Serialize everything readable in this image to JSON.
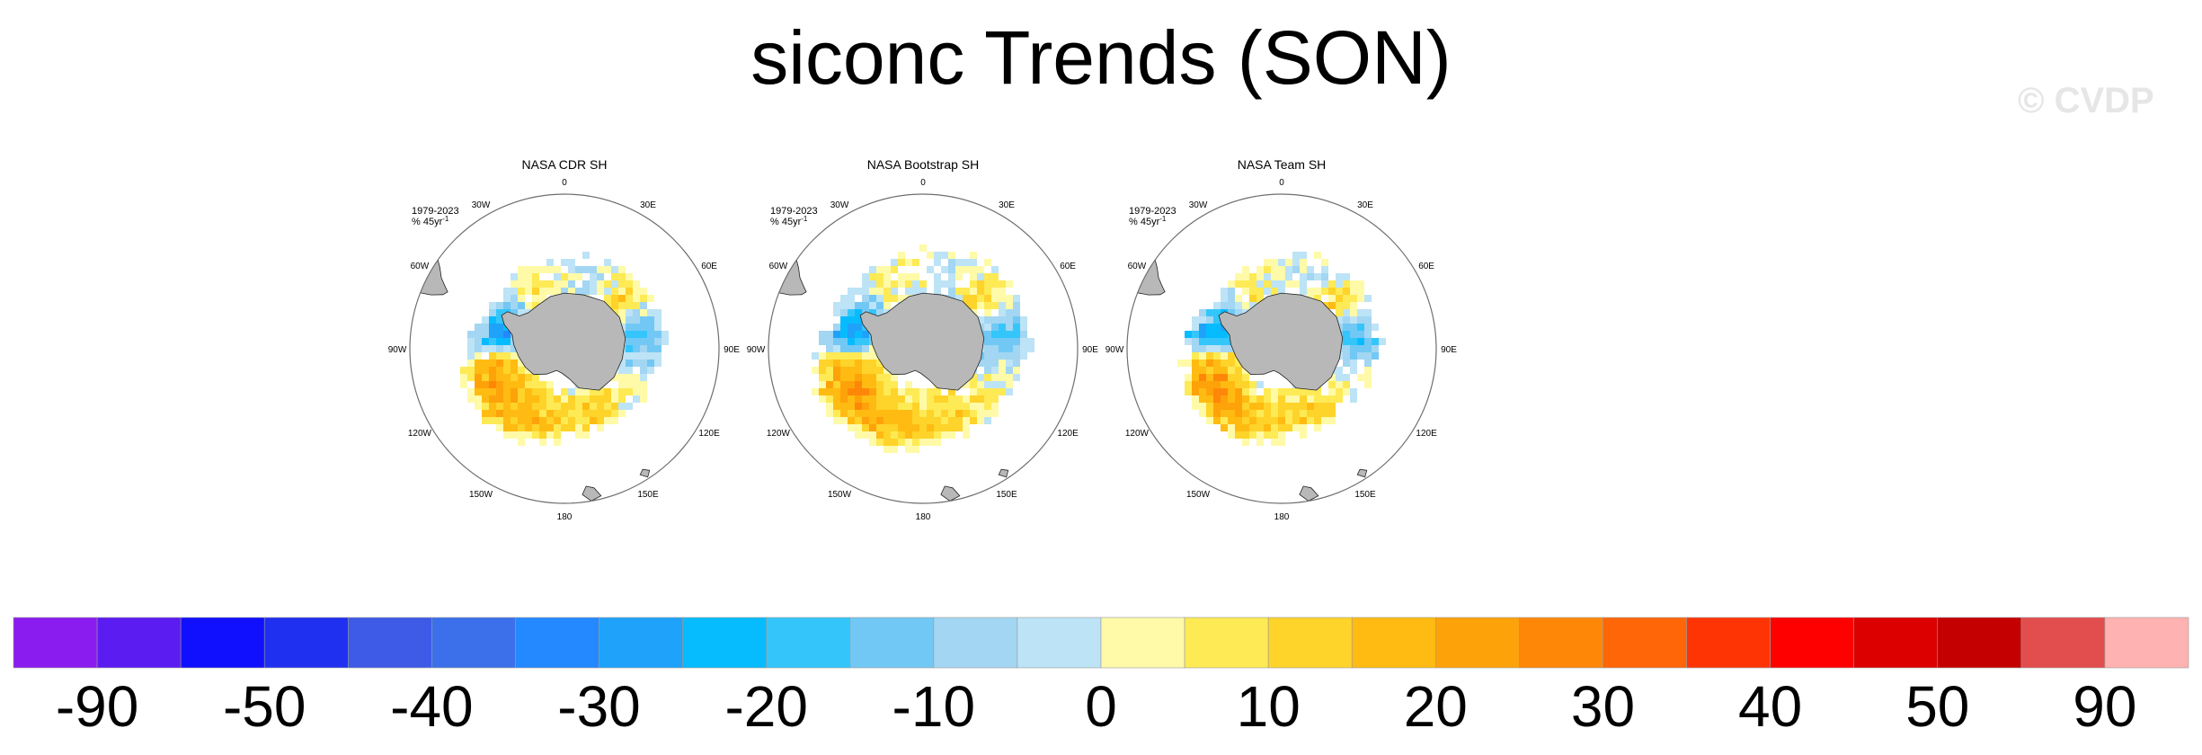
{
  "title": "siconc Trends (SON)",
  "watermark": "© CVDP",
  "chart_data": {
    "type": "heatmap",
    "projection": "south-polar-stereographic",
    "panels": [
      {
        "title": "NASA CDR SH",
        "period": "1979-2023",
        "units": "% 45yr",
        "units_sup": "-1"
      },
      {
        "title": "NASA Bootstrap SH",
        "period": "1979-2023",
        "units": "% 45yr",
        "units_sup": "-1"
      },
      {
        "title": "NASA Team SH",
        "period": "1979-2023",
        "units": "% 45yr",
        "units_sup": "-1"
      }
    ],
    "longitude_labels": [
      "0",
      "30E",
      "60E",
      "90E",
      "120E",
      "150E",
      "180",
      "150W",
      "120W",
      "90W",
      "60W",
      "30W"
    ],
    "trend_pattern_by_longitude": [
      {
        "lon": 0,
        "value": 0
      },
      {
        "lon": 20,
        "value": -5
      },
      {
        "lon": 50,
        "value": 10
      },
      {
        "lon": 80,
        "value": -15
      },
      {
        "lon": 110,
        "value": 0
      },
      {
        "lon": 150,
        "value": 10
      },
      {
        "lon": 180,
        "value": 10
      },
      {
        "lon": 210,
        "value": 15
      },
      {
        "lon": 240,
        "value": 20
      },
      {
        "lon": 260,
        "value": 15
      },
      {
        "lon": 280,
        "value": -25
      },
      {
        "lon": 300,
        "value": -15
      },
      {
        "lon": 330,
        "value": 5
      }
    ],
    "colorbar": {
      "colors": [
        "#8a1cf0",
        "#5a1cf0",
        "#1010ff",
        "#2030f0",
        "#3d5be6",
        "#3b70ea",
        "#2488ff",
        "#1ea2fa",
        "#06bcff",
        "#34c6fb",
        "#72c8f4",
        "#a2d6f2",
        "#bde3f6",
        "#fefaa8",
        "#fdea55",
        "#fed32a",
        "#ffbb12",
        "#fea20a",
        "#ff8708",
        "#ff6608",
        "#ff3404",
        "#ff0000",
        "#dd0000",
        "#c40000",
        "#e24e4e",
        "#ffb2b2"
      ],
      "labels": [
        "-90",
        "-50",
        "-40",
        "-30",
        "-20",
        "-10",
        "0",
        "10",
        "20",
        "30",
        "40",
        "50",
        "90"
      ]
    }
  },
  "colors": {
    "land": "#b8b8b8",
    "ring": "#6e6e6e"
  }
}
